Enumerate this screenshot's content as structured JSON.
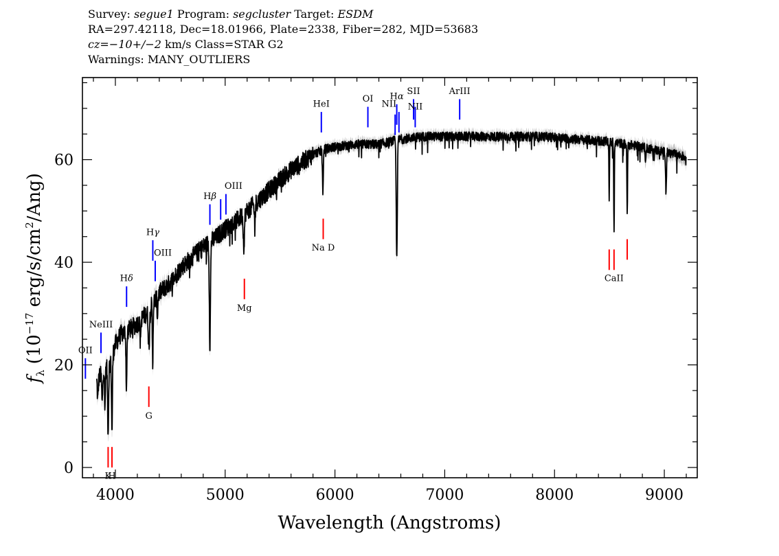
{
  "header": {
    "l1_survey_label": "Survey:",
    "l1_survey": "segue1",
    "l1_program_label": "Program:",
    "l1_program": "segcluster",
    "l1_target_label": "Target:",
    "l1_target": "ESDM",
    "line2": "RA=297.42118, Dec=18.01966, Plate=2338, Fiber=282, MJD=53683",
    "l3_cz_label": "cz=",
    "l3_cz_value": "−10+/−2",
    "l3_rest": " km/s Class=STAR G2",
    "line4": "Warnings: MANY_OUTLIERS"
  },
  "chart_data": {
    "type": "line",
    "xlabel": "Wavelength (Angstroms)",
    "ylabel": "f_λ (10^-17 erg/s/cm^2/Ang)",
    "ylabel_parts": {
      "f": "f",
      "sub": "λ",
      "unit_a": " (10",
      "exp_a": "−17",
      "unit_b": " erg/s/cm",
      "exp_b": "2",
      "unit_c": "/Ang)"
    },
    "xlim": [
      3700,
      9300
    ],
    "ylim": [
      -2,
      76
    ],
    "x_ticks": [
      4000,
      5000,
      6000,
      7000,
      8000,
      9000
    ],
    "x_tick_labels": [
      "4000",
      "5000",
      "6000",
      "7000",
      "8000",
      "9000"
    ],
    "y_ticks": [
      0,
      20,
      40,
      60
    ],
    "y_tick_labels": [
      "0",
      "20",
      "40",
      "60"
    ],
    "x_minor_step": 200,
    "y_minor_step": 5,
    "grid": false,
    "series_color": "#000000",
    "error_color": "#bbbbbb",
    "continuum": [
      [
        3830,
        17
      ],
      [
        3900,
        19
      ],
      [
        3950,
        20
      ],
      [
        4000,
        24
      ],
      [
        4050,
        26
      ],
      [
        4100,
        26.5
      ],
      [
        4200,
        28
      ],
      [
        4300,
        30.5
      ],
      [
        4400,
        34
      ],
      [
        4500,
        36
      ],
      [
        4600,
        39
      ],
      [
        4700,
        41
      ],
      [
        4800,
        43
      ],
      [
        4900,
        44.5
      ],
      [
        5000,
        46.5
      ],
      [
        5100,
        48
      ],
      [
        5200,
        50
      ],
      [
        5300,
        52
      ],
      [
        5400,
        54
      ],
      [
        5500,
        56
      ],
      [
        5600,
        58
      ],
      [
        5700,
        59.5
      ],
      [
        5800,
        61
      ],
      [
        5900,
        62
      ],
      [
        6000,
        62.5
      ],
      [
        6200,
        63
      ],
      [
        6400,
        63
      ],
      [
        6600,
        64
      ],
      [
        6800,
        64.5
      ],
      [
        7000,
        64.5
      ],
      [
        7500,
        64.5
      ],
      [
        7900,
        64.5
      ],
      [
        8200,
        64
      ],
      [
        8500,
        63.5
      ],
      [
        8800,
        62.5
      ],
      [
        9000,
        61.5
      ],
      [
        9100,
        61
      ],
      [
        9200,
        60.5
      ]
    ],
    "absorption_lines": [
      [
        3840,
        4,
        6
      ],
      [
        3880,
        6,
        6
      ],
      [
        3905,
        8,
        5
      ],
      [
        3934,
        13,
        6
      ],
      [
        3969,
        14,
        6
      ],
      [
        4101,
        11,
        6
      ],
      [
        4227,
        4,
        5
      ],
      [
        4305,
        7,
        8
      ],
      [
        4340,
        12,
        5
      ],
      [
        4383,
        4,
        5
      ],
      [
        4861,
        20,
        7
      ],
      [
        5170,
        6,
        8
      ],
      [
        5270,
        4,
        6
      ],
      [
        5890,
        8,
        6
      ],
      [
        6563,
        23,
        7
      ],
      [
        8498,
        10,
        4
      ],
      [
        8542,
        17,
        4
      ],
      [
        8662,
        14,
        4
      ],
      [
        8830,
        3,
        5
      ],
      [
        9015,
        8,
        5
      ]
    ],
    "line_labels": [
      {
        "id": "oii",
        "text": "OII",
        "sup": "",
        "wl": 3727,
        "y1": 17.3,
        "y2": 21.3,
        "ly": 22.3,
        "color": "blue",
        "anchor": "middle"
      },
      {
        "id": "neiii",
        "text": "NeIII",
        "sup": "",
        "wl": 3869,
        "y1": 22.3,
        "y2": 26.3,
        "ly": 27.3,
        "color": "blue",
        "anchor": "middle"
      },
      {
        "id": "hdelta",
        "text": "H",
        "sup": "δ",
        "wl": 4102,
        "y1": 31.3,
        "y2": 35.3,
        "ly": 36.3,
        "color": "blue",
        "anchor": "middle"
      },
      {
        "id": "hgamma",
        "text": "H",
        "sup": "γ",
        "wl": 4341,
        "y1": 40.3,
        "y2": 44.3,
        "ly": 45.3,
        "color": "blue",
        "anchor": "middle"
      },
      {
        "id": "oiii-4363",
        "text": "OIII",
        "sup": "",
        "wl": 4363,
        "y1": 36.3,
        "y2": 40.3,
        "ly": 41.3,
        "color": "blue",
        "anchor": "start"
      },
      {
        "id": "hbeta",
        "text": "H",
        "sup": "β",
        "wl": 4861,
        "y1": 47.3,
        "y2": 51.3,
        "ly": 52.3,
        "color": "blue",
        "anchor": "middle"
      },
      {
        "id": "oiii-4959",
        "text": "",
        "sup": "",
        "wl": 4959,
        "y1": 48.3,
        "y2": 52.3,
        "ly": 0,
        "color": "blue",
        "anchor": "middle"
      },
      {
        "id": "oiii-5007",
        "text": "OIII",
        "sup": "",
        "wl": 5007,
        "y1": 49.3,
        "y2": 53.3,
        "ly": 54.3,
        "color": "blue",
        "anchor": "start"
      },
      {
        "id": "hei",
        "text": "HeI",
        "sup": "",
        "wl": 5876,
        "y1": 65.3,
        "y2": 69.3,
        "ly": 70.3,
        "color": "blue",
        "anchor": "middle"
      },
      {
        "id": "oi",
        "text": "OI",
        "sup": "",
        "wl": 6300,
        "y1": 66.3,
        "y2": 70.3,
        "ly": 71.3,
        "color": "blue",
        "anchor": "middle"
      },
      {
        "id": "nii-6548",
        "text": "NII",
        "sup": "",
        "wl": 6548,
        "y1": 64.8,
        "y2": 68.8,
        "ly": 70.3,
        "color": "blue",
        "anchor": "end"
      },
      {
        "id": "halpha",
        "text": "H",
        "sup": "α",
        "wl": 6563,
        "y1": 66.8,
        "y2": 70.8,
        "ly": 71.8,
        "color": "blue",
        "anchor": "middle"
      },
      {
        "id": "nii-6583",
        "text": "",
        "sup": "",
        "wl": 6583,
        "y1": 65.3,
        "y2": 69.3,
        "ly": 0,
        "color": "blue",
        "anchor": "middle"
      },
      {
        "id": "sii-6716",
        "text": "SII",
        "sup": "",
        "wl": 6716,
        "y1": 67.8,
        "y2": 71.8,
        "ly": 72.8,
        "color": "blue",
        "anchor": "middle"
      },
      {
        "id": "nii-ni",
        "text": "NII",
        "sup": "",
        "wl": 6731,
        "y1": 66.3,
        "y2": 70.3,
        "ly": 69.8,
        "color": "blue",
        "anchor": "middle"
      },
      {
        "id": "ariii",
        "text": "ArIII",
        "sup": "",
        "wl": 7136,
        "y1": 67.8,
        "y2": 71.8,
        "ly": 72.8,
        "color": "blue",
        "anchor": "middle"
      },
      {
        "id": "na-d",
        "text": "Na D",
        "sup": "",
        "wl": 5893,
        "y1": 44.5,
        "y2": 48.5,
        "ly": 42.3,
        "color": "red",
        "anchor": "middle"
      },
      {
        "id": "mg",
        "text": "Mg",
        "sup": "",
        "wl": 5175,
        "y1": 32.8,
        "y2": 36.8,
        "ly": 30.5,
        "color": "red",
        "anchor": "middle"
      },
      {
        "id": "g-band",
        "text": "G",
        "sup": "",
        "wl": 4305,
        "y1": 11.8,
        "y2": 15.8,
        "ly": 9.5,
        "color": "red",
        "anchor": "middle"
      },
      {
        "id": "ca-k",
        "text": "K",
        "sup": "",
        "wl": 3934,
        "y1": 0.0,
        "y2": 4.0,
        "ly": -2.2,
        "color": "red",
        "anchor": "middle"
      },
      {
        "id": "ca-h",
        "text": "H",
        "sup": "",
        "wl": 3969,
        "y1": 0.0,
        "y2": 4.0,
        "ly": -2.2,
        "color": "red",
        "anchor": "middle"
      },
      {
        "id": "caii-8498",
        "text": "",
        "sup": "",
        "wl": 8498,
        "y1": 38.5,
        "y2": 42.5,
        "ly": 0,
        "color": "red",
        "anchor": "middle"
      },
      {
        "id": "caii-8542",
        "text": "CaII",
        "sup": "",
        "wl": 8542,
        "y1": 38.5,
        "y2": 42.5,
        "ly": 36.3,
        "color": "red",
        "anchor": "middle"
      },
      {
        "id": "caii-8662",
        "text": "",
        "sup": "",
        "wl": 8662,
        "y1": 40.5,
        "y2": 44.5,
        "ly": 0,
        "color": "red",
        "anchor": "middle"
      }
    ]
  }
}
